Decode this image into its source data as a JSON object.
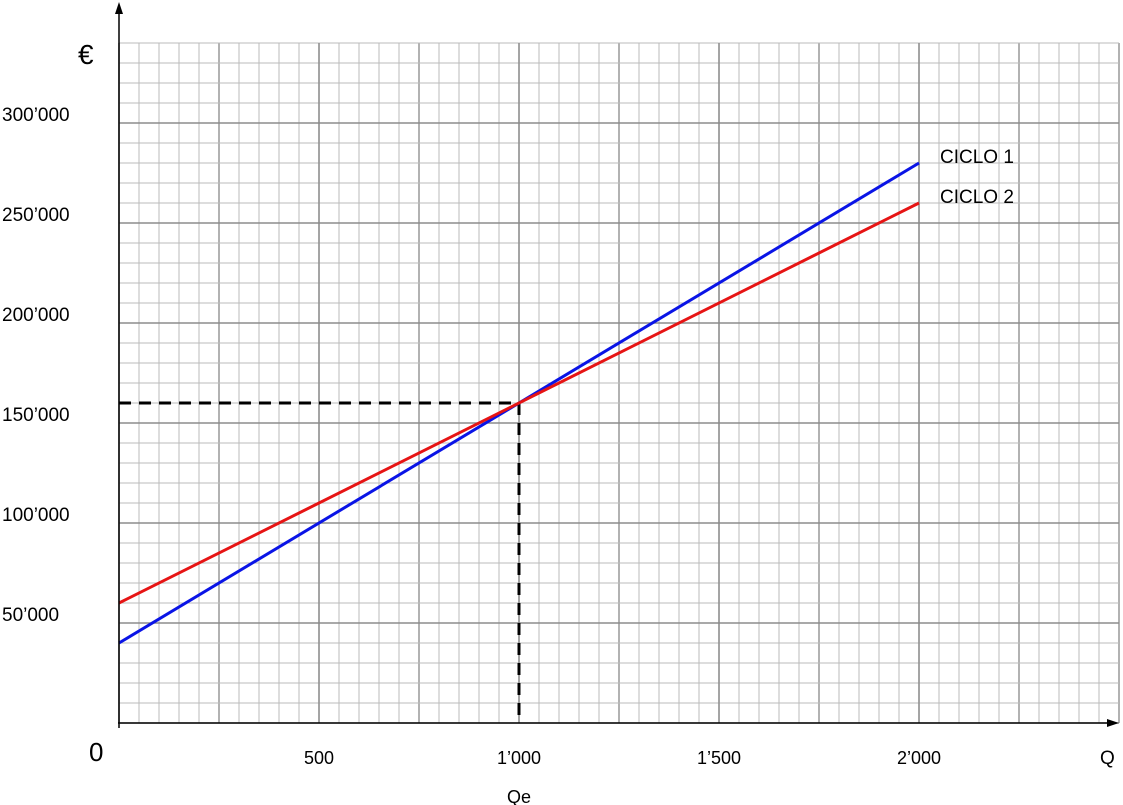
{
  "chart_data": {
    "type": "line",
    "x_label": "Q",
    "y_label": "€",
    "x": [
      0,
      2000
    ],
    "series": [
      {
        "name": "CICLO 1",
        "color": "#0a14e6",
        "values": [
          40000,
          280000
        ]
      },
      {
        "name": "CICLO 2",
        "color": "#e61414",
        "values": [
          60000,
          260000
        ]
      }
    ],
    "xlim": [
      0,
      2500
    ],
    "ylim": [
      0,
      340000
    ],
    "xticks": [
      0,
      500,
      {
        "value": 1000,
        "label": "1’000"
      },
      {
        "value": 1500,
        "label": "1’500"
      },
      {
        "value": 2000,
        "label": "2’000"
      }
    ],
    "yticks": [
      {
        "value": 50000,
        "label": "50’000"
      },
      {
        "value": 100000,
        "label": "100’000"
      },
      {
        "value": 150000,
        "label": "150’000"
      },
      {
        "value": 200000,
        "label": "200’000"
      },
      {
        "value": 250000,
        "label": "250’000"
      },
      {
        "value": 300000,
        "label": "300’000"
      }
    ],
    "grid": true,
    "reference_point": {
      "x": 1000,
      "y": 160000,
      "label": "Qe"
    }
  }
}
